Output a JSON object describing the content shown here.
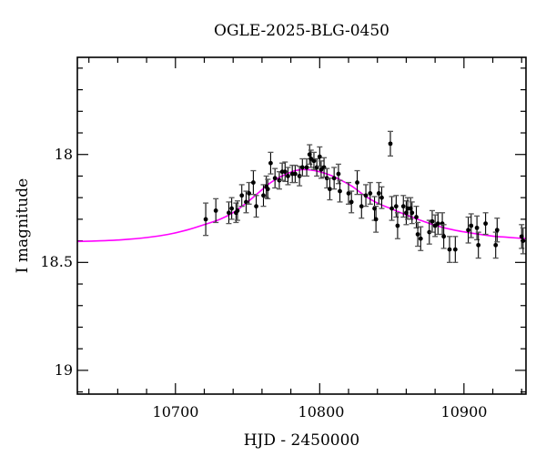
{
  "figure": {
    "title": "OGLE-2025-BLG-0450",
    "xlabel": "HJD - 2450000",
    "ylabel": "I magnitude",
    "x_tick_labels": [
      "10700",
      "10800",
      "10900"
    ],
    "y_tick_labels": [
      "18",
      "18.5",
      "19"
    ]
  },
  "chart_data": {
    "type": "scatter",
    "title": "OGLE-2025-BLG-0450",
    "xlabel": "HJD - 2450000",
    "ylabel": "I magnitude",
    "xlim": [
      10632,
      10943
    ],
    "ylim": [
      19.11,
      17.55
    ],
    "y_axis_inverted": true,
    "x_major_ticks": [
      10700,
      10800,
      10900
    ],
    "x_minor_step": 20,
    "y_major_ticks": [
      18,
      18.5,
      19
    ],
    "y_minor_step": 0.1,
    "grid": false,
    "legend": false,
    "colors": {
      "model_curve": "#ff00ff",
      "data_points": "#000000",
      "error_caps": "#555555",
      "frame": "#000000"
    },
    "series": [
      {
        "name": "I-band photometry",
        "type": "scatter_errorbar",
        "points_format": [
          "hjd_minus_2450000",
          "I_mag",
          "err_mag"
        ],
        "points": [
          [
            10721,
            18.3,
            0.075
          ],
          [
            10728,
            18.26,
            0.055
          ],
          [
            10737,
            18.27,
            0.05
          ],
          [
            10739,
            18.25,
            0.05
          ],
          [
            10742,
            18.27,
            0.045
          ],
          [
            10743,
            18.26,
            0.045
          ],
          [
            10746,
            18.19,
            0.05
          ],
          [
            10749,
            18.22,
            0.05
          ],
          [
            10751,
            18.18,
            0.05
          ],
          [
            10754,
            18.13,
            0.055
          ],
          [
            10756,
            18.24,
            0.05
          ],
          [
            10761,
            18.19,
            0.05
          ],
          [
            10763,
            18.15,
            0.05
          ],
          [
            10764,
            18.16,
            0.045
          ],
          [
            10766,
            18.04,
            0.05
          ],
          [
            10769,
            18.11,
            0.045
          ],
          [
            10772,
            18.12,
            0.04
          ],
          [
            10774,
            18.08,
            0.04
          ],
          [
            10776,
            18.08,
            0.045
          ],
          [
            10778,
            18.1,
            0.04
          ],
          [
            10781,
            18.09,
            0.04
          ],
          [
            10783,
            18.09,
            0.04
          ],
          [
            10786,
            18.1,
            0.045
          ],
          [
            10788,
            18.06,
            0.04
          ],
          [
            10791,
            18.06,
            0.04
          ],
          [
            10793,
            18.0,
            0.045
          ],
          [
            10794,
            18.02,
            0.04
          ],
          [
            10796,
            18.03,
            0.04
          ],
          [
            10798,
            18.06,
            0.04
          ],
          [
            10800,
            18.01,
            0.045
          ],
          [
            10801,
            18.07,
            0.04
          ],
          [
            10803,
            18.06,
            0.045
          ],
          [
            10805,
            18.11,
            0.045
          ],
          [
            10807,
            18.16,
            0.05
          ],
          [
            10810,
            18.11,
            0.05
          ],
          [
            10813,
            18.09,
            0.045
          ],
          [
            10814,
            18.17,
            0.05
          ],
          [
            10820,
            18.18,
            0.05
          ],
          [
            10822,
            18.22,
            0.05
          ],
          [
            10826,
            18.13,
            0.055
          ],
          [
            10829,
            18.24,
            0.055
          ],
          [
            10832,
            18.19,
            0.05
          ],
          [
            10835,
            18.18,
            0.05
          ],
          [
            10838,
            18.25,
            0.055
          ],
          [
            10839,
            18.3,
            0.06
          ],
          [
            10841,
            18.18,
            0.05
          ],
          [
            10843,
            18.2,
            0.05
          ],
          [
            10849,
            17.95,
            0.057
          ],
          [
            10850,
            18.25,
            0.055
          ],
          [
            10853,
            18.24,
            0.05
          ],
          [
            10854,
            18.33,
            0.06
          ],
          [
            10858,
            18.24,
            0.05
          ],
          [
            10860,
            18.27,
            0.055
          ],
          [
            10861,
            18.25,
            0.05
          ],
          [
            10863,
            18.25,
            0.05
          ],
          [
            10864,
            18.27,
            0.05
          ],
          [
            10867,
            18.29,
            0.05
          ],
          [
            10868,
            18.37,
            0.055
          ],
          [
            10870,
            18.39,
            0.055
          ],
          [
            10876,
            18.36,
            0.055
          ],
          [
            10878,
            18.31,
            0.05
          ],
          [
            10880,
            18.33,
            0.05
          ],
          [
            10882,
            18.32,
            0.05
          ],
          [
            10885,
            18.32,
            0.05
          ],
          [
            10886,
            18.38,
            0.055
          ],
          [
            10890,
            18.44,
            0.06
          ],
          [
            10894,
            18.44,
            0.06
          ],
          [
            10903,
            18.35,
            0.06
          ],
          [
            10905,
            18.33,
            0.055
          ],
          [
            10909,
            18.34,
            0.055
          ],
          [
            10910,
            18.42,
            0.06
          ],
          [
            10915,
            18.32,
            0.05
          ],
          [
            10922,
            18.42,
            0.06
          ],
          [
            10923,
            18.35,
            0.055
          ],
          [
            10940,
            18.38,
            0.055
          ],
          [
            10941,
            18.4,
            0.06
          ]
        ]
      },
      {
        "name": "microlensing model",
        "type": "line",
        "points_format": [
          "hjd_minus_2450000",
          "I_mag"
        ],
        "points": [
          [
            10632,
            18.403
          ],
          [
            10648,
            18.4
          ],
          [
            10663,
            18.395
          ],
          [
            10680,
            18.385
          ],
          [
            10695,
            18.37
          ],
          [
            10708,
            18.35
          ],
          [
            10720,
            18.325
          ],
          [
            10731,
            18.3
          ],
          [
            10741,
            18.265
          ],
          [
            10750,
            18.22
          ],
          [
            10758,
            18.175
          ],
          [
            10765,
            18.135
          ],
          [
            10771,
            18.11
          ],
          [
            10777,
            18.09
          ],
          [
            10783,
            18.075
          ],
          [
            10788,
            18.07
          ],
          [
            10794,
            18.072
          ],
          [
            10800,
            18.08
          ],
          [
            10807,
            18.095
          ],
          [
            10815,
            18.12
          ],
          [
            10823,
            18.15
          ],
          [
            10831,
            18.19
          ],
          [
            10840,
            18.225
          ],
          [
            10849,
            18.25
          ],
          [
            10860,
            18.28
          ],
          [
            10870,
            18.305
          ],
          [
            10881,
            18.33
          ],
          [
            10893,
            18.35
          ],
          [
            10906,
            18.365
          ],
          [
            10920,
            18.378
          ],
          [
            10931,
            18.384
          ],
          [
            10943,
            18.39
          ]
        ]
      }
    ]
  }
}
